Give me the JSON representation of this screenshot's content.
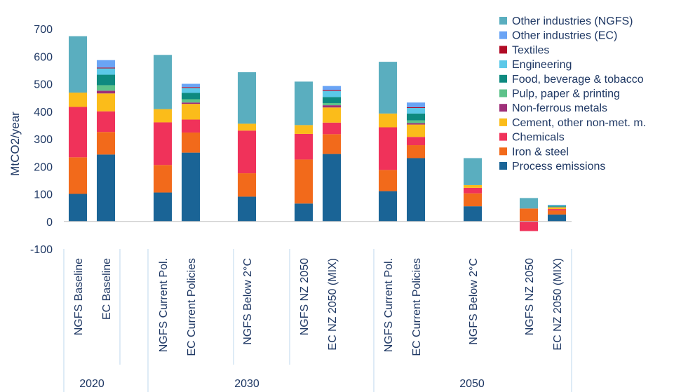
{
  "chart_data": {
    "type": "bar",
    "stacked": true,
    "ylabel": "MtCO2/year",
    "ylim": [
      -100,
      700
    ],
    "yticks": [
      -100,
      0,
      100,
      200,
      300,
      400,
      500,
      600,
      700
    ],
    "legend_position": "top-right",
    "grid": false,
    "groups": [
      {
        "label": "2020",
        "categories": [
          "NGFS Baseline",
          "EC Baseline"
        ]
      },
      {
        "label": "2030",
        "categories": [
          "NGFS Current Pol.",
          "EC Current Policies",
          "NGFS Below 2°C",
          "NGFS NZ 2050",
          "EC NZ 2050 (MIX)"
        ]
      },
      {
        "label": "2050",
        "categories": [
          "NGFS Current Pol.",
          "EC Current Policies",
          "NGFS Below 2°C",
          "NGFS NZ 2050",
          "EC NZ 2050 (MIX)"
        ]
      }
    ],
    "categories": [
      "NGFS Baseline",
      "EC Baseline",
      "NGFS Current Pol.",
      "EC Current Policies",
      "NGFS Below 2°C",
      "NGFS NZ 2050",
      "EC NZ 2050 (MIX)",
      "NGFS Current Pol.",
      "EC Current Policies",
      "NGFS Below 2°C",
      "NGFS NZ 2050",
      "EC NZ 2050 (MIX)"
    ],
    "series": [
      {
        "name": "Process emissions",
        "color": "#1a6496",
        "values": [
          100,
          243,
          105,
          250,
          90,
          65,
          245,
          110,
          230,
          55,
          0,
          25
        ]
      },
      {
        "name": "Iron & steel",
        "color": "#f26a1b",
        "values": [
          133,
          82,
          100,
          73,
          85,
          160,
          72,
          77,
          47,
          47,
          47,
          15
        ]
      },
      {
        "name": "Chemicals",
        "color": "#f0325a",
        "values": [
          183,
          75,
          155,
          47,
          155,
          93,
          42,
          155,
          30,
          20,
          -35,
          5
        ]
      },
      {
        "name": "Cement, other non-met. m.",
        "color": "#fbbc1a",
        "values": [
          52,
          65,
          48,
          57,
          25,
          32,
          55,
          50,
          45,
          10,
          0,
          6
        ]
      },
      {
        "name": "Non-ferrous metals",
        "color": "#9e2f79",
        "values": [
          0,
          10,
          0,
          5,
          0,
          0,
          8,
          0,
          5,
          0,
          0,
          1
        ]
      },
      {
        "name": "Pulp, paper & printing",
        "color": "#5dc28a",
        "values": [
          0,
          20,
          0,
          12,
          0,
          0,
          8,
          0,
          10,
          0,
          0,
          2
        ]
      },
      {
        "name": "Food, beverage & tobacco",
        "color": "#0e8a80",
        "values": [
          0,
          38,
          0,
          23,
          0,
          0,
          22,
          0,
          25,
          0,
          0,
          3
        ]
      },
      {
        "name": "Engineering",
        "color": "#5bc8e8",
        "values": [
          0,
          23,
          0,
          18,
          0,
          0,
          22,
          0,
          20,
          0,
          0,
          1
        ]
      },
      {
        "name": "Textiles",
        "color": "#b10b26",
        "values": [
          0,
          3,
          0,
          3,
          0,
          0,
          3,
          0,
          3,
          0,
          0,
          0
        ]
      },
      {
        "name": "Other industries (EC)",
        "color": "#6aa4f5",
        "values": [
          0,
          27,
          0,
          12,
          0,
          0,
          15,
          0,
          17,
          0,
          0,
          2
        ]
      },
      {
        "name": "Other industries (NGFS)",
        "color": "#5aaebf",
        "values": [
          205,
          0,
          197,
          0,
          187,
          158,
          0,
          188,
          0,
          98,
          38,
          0
        ]
      }
    ],
    "legend_order": [
      "Other industries (NGFS)",
      "Other industries (EC)",
      "Textiles",
      "Engineering",
      "Food, beverage & tobacco",
      "Pulp, paper & printing",
      "Non-ferrous metals",
      "Cement, other non-met. m.",
      "Chemicals",
      "Iron & steel",
      "Process emissions"
    ]
  }
}
